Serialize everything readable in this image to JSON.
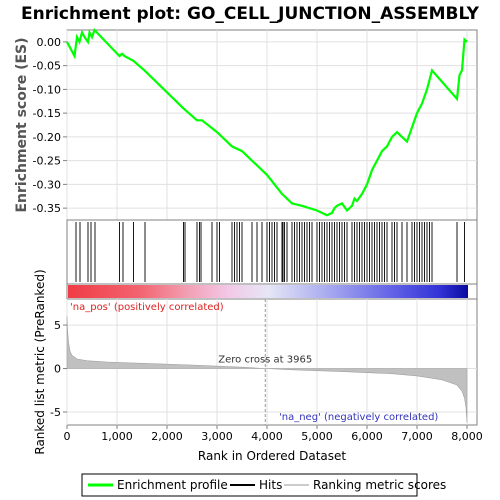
{
  "chart_data": {
    "type": "line",
    "title": "Enrichment plot: GO_CELL_JUNCTION_ASSEMBLY",
    "enrichment_panel": {
      "ylabel": "Enrichment score (ES)",
      "yticks": [
        "0.00",
        "-0.05",
        "-0.10",
        "-0.15",
        "-0.20",
        "-0.25",
        "-0.30",
        "-0.35"
      ],
      "ytick_values": [
        0.0,
        -0.05,
        -0.1,
        -0.15,
        -0.2,
        -0.25,
        -0.3,
        -0.35
      ],
      "ylim": [
        -0.375,
        0.025
      ],
      "color": "#00ff00",
      "profile": [
        [
          0,
          0
        ],
        [
          150,
          -0.03
        ],
        [
          200,
          0.01
        ],
        [
          250,
          0.0
        ],
        [
          300,
          0.02
        ],
        [
          350,
          0.01
        ],
        [
          420,
          0.0
        ],
        [
          450,
          0.02
        ],
        [
          500,
          0.01
        ],
        [
          550,
          0.025
        ],
        [
          1050,
          -0.03
        ],
        [
          1100,
          -0.025
        ],
        [
          1150,
          -0.03
        ],
        [
          1330,
          -0.04
        ],
        [
          1550,
          -0.06
        ],
        [
          2330,
          -0.14
        ],
        [
          2600,
          -0.165
        ],
        [
          2700,
          -0.165
        ],
        [
          3000,
          -0.19
        ],
        [
          3300,
          -0.22
        ],
        [
          3500,
          -0.23
        ],
        [
          4000,
          -0.28
        ],
        [
          4300,
          -0.32
        ],
        [
          4500,
          -0.34
        ],
        [
          4700,
          -0.345
        ],
        [
          5000,
          -0.355
        ],
        [
          5100,
          -0.36
        ],
        [
          5200,
          -0.365
        ],
        [
          5300,
          -0.36
        ],
        [
          5350,
          -0.35
        ],
        [
          5400,
          -0.345
        ],
        [
          5500,
          -0.34
        ],
        [
          5600,
          -0.355
        ],
        [
          5700,
          -0.345
        ],
        [
          5750,
          -0.33
        ],
        [
          5800,
          -0.335
        ],
        [
          5900,
          -0.32
        ],
        [
          6000,
          -0.3
        ],
        [
          6100,
          -0.27
        ],
        [
          6200,
          -0.25
        ],
        [
          6300,
          -0.23
        ],
        [
          6400,
          -0.22
        ],
        [
          6500,
          -0.2
        ],
        [
          6600,
          -0.19
        ],
        [
          6700,
          -0.2
        ],
        [
          6800,
          -0.21
        ],
        [
          6900,
          -0.18
        ],
        [
          7000,
          -0.15
        ],
        [
          7100,
          -0.13
        ],
        [
          7200,
          -0.1
        ],
        [
          7300,
          -0.06
        ],
        [
          7800,
          -0.12
        ],
        [
          7850,
          -0.07
        ],
        [
          7900,
          -0.06
        ],
        [
          7950,
          0.005
        ],
        [
          8000,
          0.0
        ]
      ]
    },
    "hits": [
      180,
      260,
      420,
      480,
      560,
      1050,
      1120,
      1330,
      1560,
      2330,
      2360,
      2600,
      2650,
      2680,
      2900,
      3000,
      3050,
      3300,
      3350,
      3400,
      3450,
      3500,
      3700,
      3800,
      3900,
      4000,
      4050,
      4100,
      4150,
      4200,
      4300,
      4320,
      4350,
      4400,
      4500,
      4550,
      4600,
      4650,
      4700,
      4750,
      4800,
      4850,
      4900,
      5000,
      5050,
      5100,
      5150,
      5200,
      5250,
      5300,
      5350,
      5400,
      5450,
      5500,
      5550,
      5600,
      5700,
      5750,
      5800,
      5850,
      5900,
      5950,
      6000,
      6050,
      6100,
      6150,
      6200,
      6250,
      6300,
      6350,
      6400,
      6500,
      6550,
      6600,
      6700,
      6800,
      6900,
      6950,
      7000,
      7050,
      7100,
      7150,
      7200,
      7250,
      7300,
      7800,
      7950
    ],
    "ranked_panel": {
      "xlabel": "Rank in Ordered Dataset",
      "ylabel": "Ranked list metric (PreRanked)",
      "yticks": [
        "5",
        "0",
        "-5"
      ],
      "ytick_values": [
        5,
        0,
        -5
      ],
      "ylim": [
        -6.5,
        8
      ],
      "xticks": [
        "0",
        "1,000",
        "2,000",
        "3,000",
        "4,000",
        "5,000",
        "6,000",
        "7,000",
        "8,000"
      ],
      "xtick_values": [
        0,
        1000,
        2000,
        3000,
        4000,
        5000,
        6000,
        7000,
        8000
      ],
      "xlim": [
        0,
        8200
      ],
      "zero_cross": 3965,
      "metric": [
        [
          0,
          6.0
        ],
        [
          10,
          4.5
        ],
        [
          30,
          3.0
        ],
        [
          60,
          2.0
        ],
        [
          100,
          1.5
        ],
        [
          200,
          1.1
        ],
        [
          400,
          0.9
        ],
        [
          800,
          0.75
        ],
        [
          1500,
          0.6
        ],
        [
          2500,
          0.4
        ],
        [
          3500,
          0.15
        ],
        [
          3965,
          0.0
        ],
        [
          4500,
          -0.15
        ],
        [
          5500,
          -0.35
        ],
        [
          6500,
          -0.6
        ],
        [
          7000,
          -0.85
        ],
        [
          7500,
          -1.3
        ],
        [
          7800,
          -1.9
        ],
        [
          7900,
          -2.6
        ],
        [
          7950,
          -3.4
        ],
        [
          7980,
          -4.5
        ],
        [
          8000,
          -6.2
        ]
      ]
    },
    "annotations": {
      "zero_cross_label": "Zero cross at 3965",
      "pos_label": "'na_pos' (positively correlated)",
      "neg_label": "'na_neg' (negatively correlated)",
      "pos_color": "#ff0000",
      "neg_color": "#3333cc"
    },
    "legend": {
      "placement": "bottom",
      "items": [
        {
          "label": "Enrichment profile",
          "color": "#00ff00"
        },
        {
          "label": "Hits",
          "color": "#000000"
        },
        {
          "label": "Ranking metric scores",
          "color": "#cccccc"
        }
      ]
    }
  }
}
